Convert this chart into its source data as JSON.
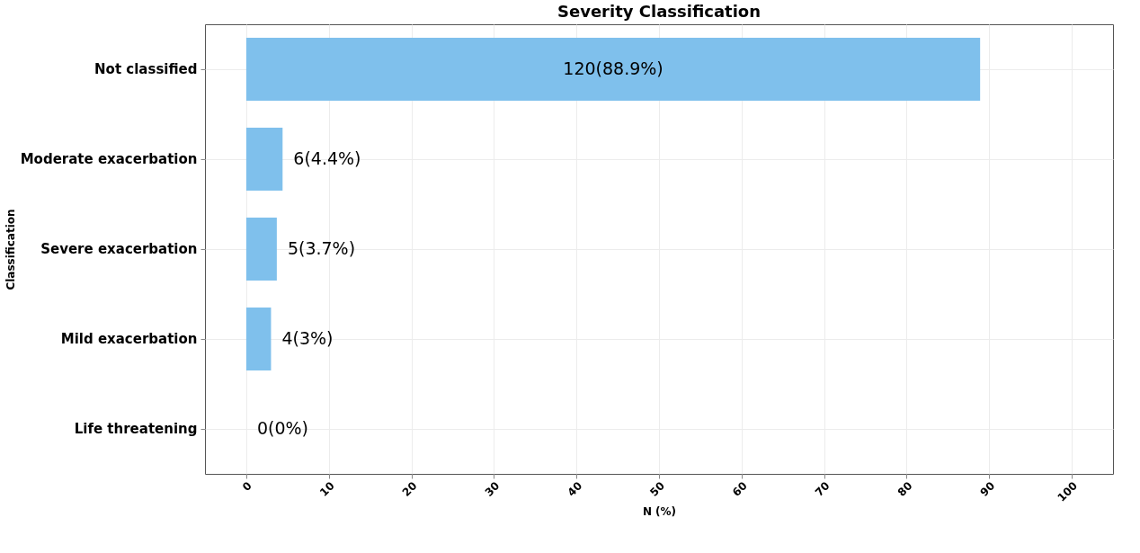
{
  "chart_data": {
    "type": "bar",
    "orientation": "horizontal",
    "title": "Severity Classification",
    "xlabel": "N (%)",
    "ylabel": "Classification",
    "categories": [
      "Not classified",
      "Moderate exacerbation",
      "Severe exacerbation",
      "Mild exacerbation",
      "Life threatening"
    ],
    "values": [
      88.9,
      4.4,
      3.7,
      3,
      0
    ],
    "color": "#7fc0ec",
    "value_labels": [
      "120(88.9%)",
      "6(4.4%)",
      "5(3.7%)",
      "4(3%)",
      "0(0%)"
    ],
    "xlim": [
      -5,
      105
    ],
    "xticks": [
      0,
      10,
      20,
      30,
      40,
      50,
      60,
      70,
      80,
      90,
      100
    ],
    "grid": true
  }
}
